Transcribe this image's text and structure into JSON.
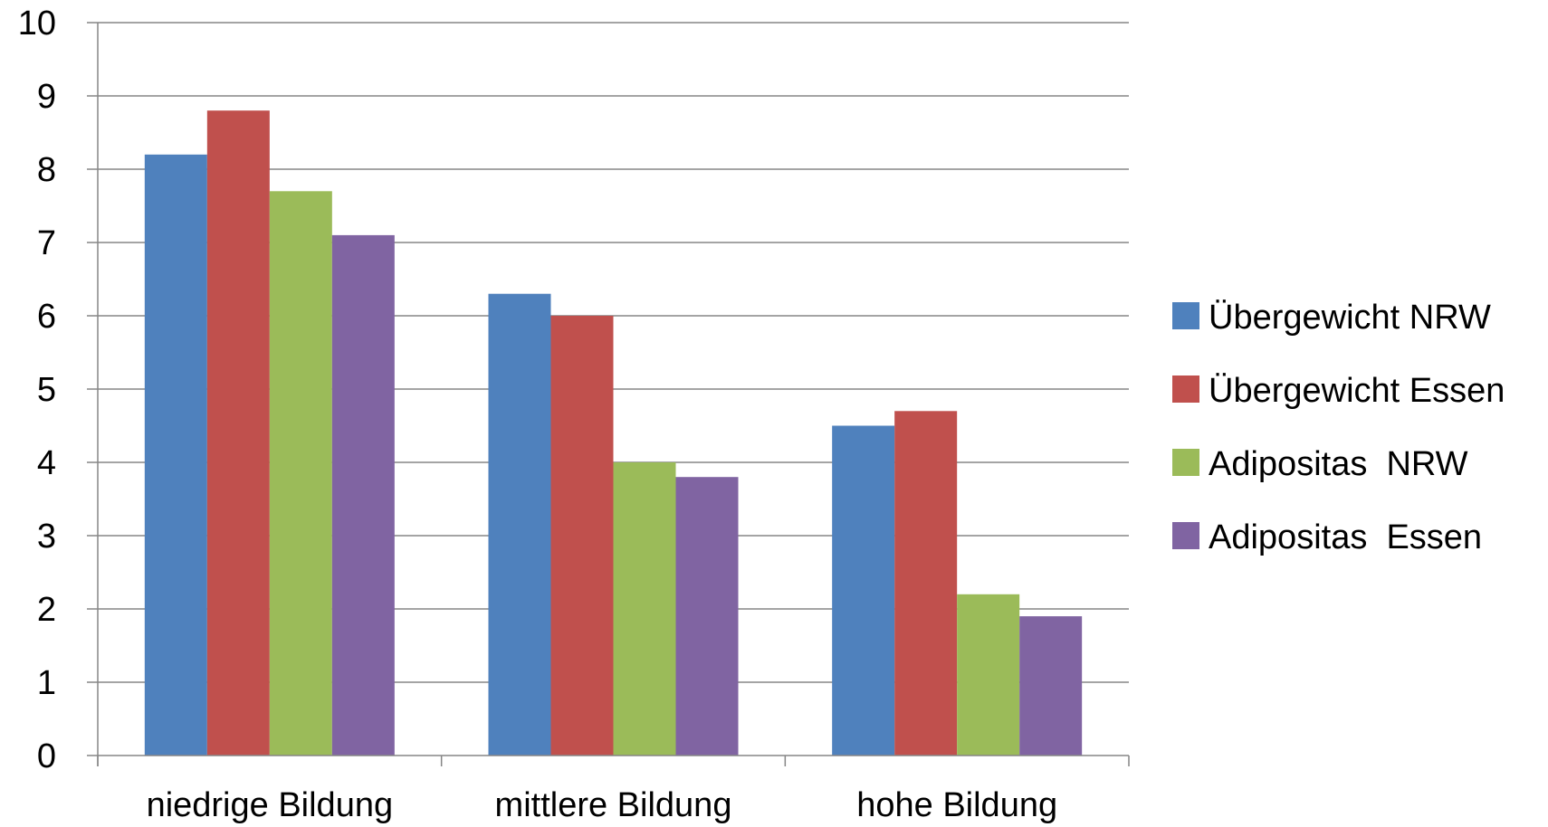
{
  "chart_data": {
    "type": "bar",
    "categories": [
      "niedrige Bildung",
      "mittlere Bildung",
      "hohe Bildung"
    ],
    "series": [
      {
        "name": "Übergewicht NRW",
        "values": [
          8.2,
          6.3,
          4.5
        ],
        "color": "#4F81BD"
      },
      {
        "name": "Übergewicht Essen",
        "values": [
          8.8,
          6.0,
          4.7
        ],
        "color": "#C0504D"
      },
      {
        "name": "Adipositas  NRW",
        "values": [
          7.7,
          4.0,
          2.2
        ],
        "color": "#9BBB59"
      },
      {
        "name": "Adipositas  Essen",
        "values": [
          7.1,
          3.8,
          1.9
        ],
        "color": "#8064A2"
      }
    ],
    "yticks": [
      "0",
      "1",
      "2",
      "3",
      "4",
      "5",
      "6",
      "7",
      "8",
      "9",
      "10"
    ],
    "ylim": [
      0,
      10
    ],
    "grid": true,
    "legend_position": "right"
  }
}
